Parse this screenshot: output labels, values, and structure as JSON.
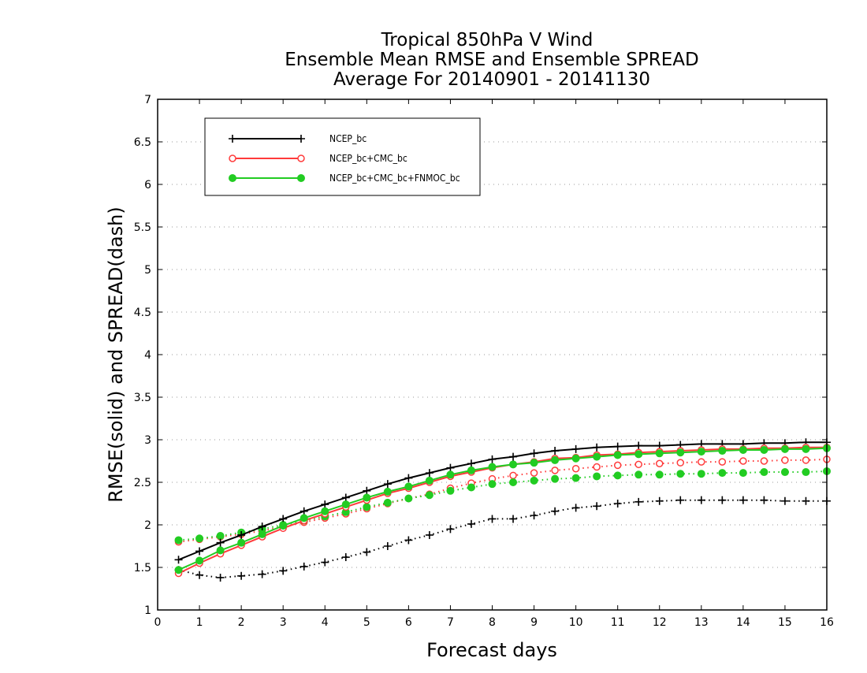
{
  "chart_data": {
    "type": "line",
    "title": [
      "Tropical 850hPa V Wind",
      "Ensemble Mean RMSE and Ensemble SPREAD",
      "Average For 20140901 - 20141130"
    ],
    "xlabel": "Forecast days",
    "ylabel": "RMSE(solid) and SPREAD(dash)",
    "xlim": [
      0,
      16
    ],
    "ylim": [
      1,
      7
    ],
    "xticks": [
      "0",
      "1",
      "2",
      "3",
      "4",
      "5",
      "6",
      "7",
      "8",
      "9",
      "10",
      "11",
      "12",
      "13",
      "14",
      "15",
      "16"
    ],
    "yticks": [
      "1",
      "1.5",
      "2",
      "2.5",
      "3",
      "3.5",
      "4",
      "4.5",
      "5",
      "5.5",
      "6",
      "6.5",
      "7"
    ],
    "grid": true,
    "legend_position": "top-left",
    "x": [
      0.5,
      1,
      1.5,
      2,
      2.5,
      3,
      3.5,
      4,
      4.5,
      5,
      5.5,
      6,
      6.5,
      7,
      7.5,
      8,
      8.5,
      9,
      9.5,
      10,
      10.5,
      11,
      11.5,
      12,
      12.5,
      13,
      13.5,
      14,
      14.5,
      15,
      15.5,
      16
    ],
    "series": [
      {
        "name": "NCEP_bc",
        "color": "#000000",
        "marker": "plus",
        "rmse": [
          1.59,
          1.69,
          1.79,
          1.88,
          1.98,
          2.07,
          2.16,
          2.24,
          2.32,
          2.4,
          2.48,
          2.55,
          2.61,
          2.67,
          2.72,
          2.77,
          2.8,
          2.84,
          2.87,
          2.89,
          2.91,
          2.92,
          2.93,
          2.93,
          2.94,
          2.95,
          2.95,
          2.95,
          2.96,
          2.96,
          2.97,
          2.97
        ],
        "spread": [
          1.47,
          1.41,
          1.38,
          1.4,
          1.42,
          1.46,
          1.51,
          1.56,
          1.62,
          1.68,
          1.75,
          1.82,
          1.88,
          1.95,
          2.01,
          2.07,
          2.07,
          2.11,
          2.16,
          2.2,
          2.22,
          2.25,
          2.27,
          2.28,
          2.29,
          2.29,
          2.29,
          2.29,
          2.29,
          2.28,
          2.28,
          2.28
        ]
      },
      {
        "name": "NCEP_bc+CMC_bc",
        "color": "#ff3b3b",
        "marker": "open-circle",
        "rmse": [
          1.43,
          1.55,
          1.66,
          1.76,
          1.86,
          1.96,
          2.05,
          2.13,
          2.21,
          2.29,
          2.37,
          2.43,
          2.5,
          2.57,
          2.62,
          2.67,
          2.71,
          2.74,
          2.78,
          2.79,
          2.82,
          2.83,
          2.85,
          2.86,
          2.87,
          2.88,
          2.89,
          2.89,
          2.9,
          2.9,
          2.91,
          2.91
        ],
        "spread": [
          1.8,
          1.83,
          1.86,
          1.89,
          1.93,
          1.98,
          2.03,
          2.08,
          2.13,
          2.19,
          2.25,
          2.31,
          2.36,
          2.43,
          2.49,
          2.54,
          2.58,
          2.61,
          2.64,
          2.66,
          2.68,
          2.7,
          2.71,
          2.72,
          2.73,
          2.74,
          2.74,
          2.75,
          2.75,
          2.76,
          2.76,
          2.77
        ]
      },
      {
        "name": "NCEP_bc+CMC_bc+FNMOC_bc",
        "color": "#22cc22",
        "marker": "filled-circle",
        "rmse": [
          1.47,
          1.58,
          1.7,
          1.79,
          1.89,
          1.99,
          2.08,
          2.16,
          2.24,
          2.32,
          2.39,
          2.45,
          2.52,
          2.59,
          2.64,
          2.68,
          2.71,
          2.73,
          2.76,
          2.78,
          2.8,
          2.82,
          2.83,
          2.84,
          2.85,
          2.86,
          2.87,
          2.88,
          2.88,
          2.89,
          2.89,
          2.9
        ],
        "spread": [
          1.82,
          1.84,
          1.87,
          1.91,
          1.95,
          2.0,
          2.05,
          2.1,
          2.15,
          2.21,
          2.26,
          2.31,
          2.35,
          2.4,
          2.44,
          2.48,
          2.5,
          2.52,
          2.54,
          2.55,
          2.57,
          2.58,
          2.59,
          2.59,
          2.6,
          2.6,
          2.61,
          2.61,
          2.62,
          2.62,
          2.62,
          2.63
        ]
      }
    ]
  }
}
